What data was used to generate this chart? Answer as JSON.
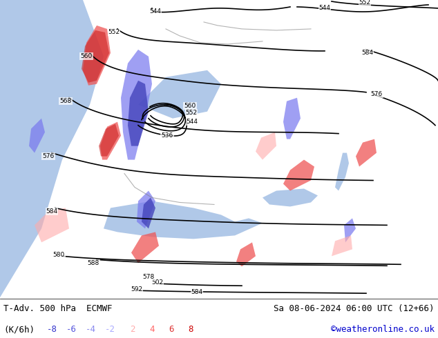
{
  "title_left": "T-Adv. 500 hPa  ECMWF",
  "title_right": "Sa 08-06-2024 06:00 UTC (12+66)",
  "label_units": "(K/6h)",
  "label_values": [
    "-8",
    "-6",
    "-4",
    "-2",
    "2",
    "4",
    "6",
    "8"
  ],
  "label_colors_neg": [
    "#3333cc",
    "#5555dd",
    "#7777ee",
    "#aaaaff"
  ],
  "label_colors_pos": [
    "#ffaaaa",
    "#ff6666",
    "#dd3333",
    "#cc0000"
  ],
  "credit": "©weatheronline.co.uk",
  "credit_color": "#0000cc",
  "bg_color": "#e8f4e8",
  "fig_width": 6.34,
  "fig_height": 4.9,
  "dpi": 100
}
